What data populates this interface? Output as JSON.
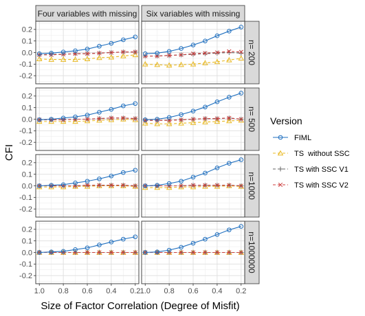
{
  "chart_data": {
    "type": "line",
    "facet_columns": [
      "Four variables with missing",
      "Six variables with missing"
    ],
    "facet_rows": [
      "n= 200",
      "n= 500",
      "n=1000",
      "n=1000000"
    ],
    "xlabel": "Size of Factor Correlation (Degree of Misfit)",
    "ylabel": "CFI",
    "x": [
      1.0,
      0.9,
      0.8,
      0.7,
      0.6,
      0.5,
      0.4,
      0.3,
      0.2
    ],
    "xlim": [
      1.03,
      0.17
    ],
    "x_reversed": true,
    "xticks": [
      "1.0",
      "0.8",
      "0.6",
      "0.4",
      "0.2"
    ],
    "ylim": [
      -0.27,
      0.27
    ],
    "yticks": [
      "0.2",
      "0.1",
      "0.0",
      "-0.1",
      "-0.2"
    ],
    "grid": true,
    "legend": {
      "title": "Version",
      "position": "right",
      "entries": [
        "FIML",
        "TS  without SSC",
        "TS with SSC V1",
        "TS with SSC V2"
      ]
    },
    "series_styles": {
      "FIML": {
        "color": "#1f6fbf",
        "marker": "circle",
        "dash": "solid"
      },
      "TS  without SSC": {
        "color": "#e8b820",
        "marker": "triangle",
        "dash": "dashed"
      },
      "TS with SSC V1": {
        "color": "#666666",
        "marker": "plus",
        "dash": "dashed"
      },
      "TS with SSC V2": {
        "color": "#cc3b3b",
        "marker": "cross",
        "dash": "dashed"
      }
    },
    "panels": [
      {
        "column": "Four variables with missing",
        "row": "n= 200",
        "series": [
          {
            "name": "FIML",
            "values": [
              -0.01,
              -0.005,
              0.005,
              0.015,
              0.03,
              0.055,
              0.08,
              0.11,
              0.135
            ]
          },
          {
            "name": "TS  without SSC",
            "values": [
              -0.055,
              -0.06,
              -0.06,
              -0.06,
              -0.055,
              -0.045,
              -0.04,
              -0.03,
              -0.02
            ]
          },
          {
            "name": "TS with SSC V1",
            "values": [
              -0.02,
              -0.015,
              -0.015,
              -0.01,
              -0.01,
              -0.005,
              0.0,
              0.005,
              0.005
            ]
          },
          {
            "name": "TS with SSC V2",
            "values": [
              -0.02,
              -0.02,
              -0.015,
              -0.01,
              -0.01,
              -0.005,
              0.0,
              0.005,
              0.005
            ]
          }
        ]
      },
      {
        "column": "Six variables with missing",
        "row": "n= 200",
        "series": [
          {
            "name": "FIML",
            "values": [
              -0.01,
              -0.005,
              0.01,
              0.035,
              0.065,
              0.1,
              0.145,
              0.185,
              0.22
            ]
          },
          {
            "name": "TS  without SSC",
            "values": [
              -0.1,
              -0.105,
              -0.11,
              -0.105,
              -0.1,
              -0.09,
              -0.08,
              -0.065,
              -0.05
            ]
          },
          {
            "name": "TS with SSC V1",
            "values": [
              -0.03,
              -0.03,
              -0.025,
              -0.02,
              -0.015,
              -0.01,
              -0.005,
              0.0,
              -0.005
            ]
          },
          {
            "name": "TS with SSC V2",
            "values": [
              -0.03,
              -0.03,
              -0.025,
              -0.02,
              -0.01,
              -0.005,
              0.0,
              0.01,
              0.005
            ]
          }
        ]
      },
      {
        "column": "Four variables with missing",
        "row": "n= 500",
        "series": [
          {
            "name": "FIML",
            "values": [
              -0.005,
              0.0,
              0.01,
              0.02,
              0.035,
              0.06,
              0.085,
              0.115,
              0.135
            ]
          },
          {
            "name": "TS  without SSC",
            "values": [
              -0.02,
              -0.02,
              -0.02,
              -0.02,
              -0.015,
              -0.01,
              -0.005,
              0.0,
              -0.005
            ]
          },
          {
            "name": "TS with SSC V1",
            "values": [
              -0.005,
              -0.005,
              -0.005,
              0.0,
              0.0,
              0.005,
              0.01,
              0.01,
              0.005
            ]
          },
          {
            "name": "TS with SSC V2",
            "values": [
              -0.005,
              -0.005,
              -0.005,
              0.0,
              0.0,
              0.005,
              0.01,
              0.01,
              0.005
            ]
          }
        ]
      },
      {
        "column": "Six variables with missing",
        "row": "n= 500",
        "series": [
          {
            "name": "FIML",
            "values": [
              -0.005,
              0.0,
              0.015,
              0.04,
              0.07,
              0.105,
              0.15,
              0.19,
              0.225
            ]
          },
          {
            "name": "TS  without SSC",
            "values": [
              -0.035,
              -0.04,
              -0.04,
              -0.035,
              -0.03,
              -0.025,
              -0.02,
              -0.015,
              -0.01
            ]
          },
          {
            "name": "TS with SSC V1",
            "values": [
              -0.01,
              -0.01,
              -0.01,
              -0.005,
              0.0,
              0.005,
              0.005,
              0.01,
              0.0
            ]
          },
          {
            "name": "TS with SSC V2",
            "values": [
              -0.01,
              -0.01,
              -0.01,
              -0.005,
              0.0,
              0.005,
              0.005,
              0.01,
              0.0
            ]
          }
        ]
      },
      {
        "column": "Four variables with missing",
        "row": "n=1000",
        "series": [
          {
            "name": "FIML",
            "values": [
              0.0,
              0.005,
              0.01,
              0.025,
              0.04,
              0.06,
              0.085,
              0.115,
              0.135
            ]
          },
          {
            "name": "TS  without SSC",
            "values": [
              -0.01,
              -0.01,
              -0.01,
              -0.005,
              -0.005,
              0.0,
              0.0,
              0.0,
              -0.005
            ]
          },
          {
            "name": "TS with SSC V1",
            "values": [
              0.0,
              0.0,
              0.0,
              0.0,
              0.005,
              0.005,
              0.005,
              0.005,
              0.0
            ]
          },
          {
            "name": "TS with SSC V2",
            "values": [
              0.0,
              0.0,
              0.0,
              0.0,
              0.005,
              0.005,
              0.005,
              0.005,
              0.0
            ]
          }
        ]
      },
      {
        "column": "Six variables with missing",
        "row": "n=1000",
        "series": [
          {
            "name": "FIML",
            "values": [
              0.0,
              0.005,
              0.02,
              0.04,
              0.075,
              0.11,
              0.155,
              0.195,
              0.225
            ]
          },
          {
            "name": "TS  without SSC",
            "values": [
              -0.015,
              -0.015,
              -0.015,
              -0.01,
              -0.01,
              -0.005,
              -0.005,
              0.0,
              -0.005
            ]
          },
          {
            "name": "TS with SSC V1",
            "values": [
              0.0,
              0.0,
              0.0,
              0.0,
              0.005,
              0.005,
              0.005,
              0.005,
              0.0
            ]
          },
          {
            "name": "TS with SSC V2",
            "values": [
              0.0,
              0.0,
              0.0,
              0.0,
              0.005,
              0.005,
              0.005,
              0.005,
              0.0
            ]
          }
        ]
      },
      {
        "column": "Four variables with missing",
        "row": "n=1000000",
        "series": [
          {
            "name": "FIML",
            "values": [
              0.0,
              0.005,
              0.01,
              0.025,
              0.04,
              0.065,
              0.09,
              0.115,
              0.135
            ]
          },
          {
            "name": "TS  without SSC",
            "values": [
              0.0,
              0.0,
              0.0,
              0.0,
              0.0,
              0.0,
              0.0,
              0.0,
              0.0
            ]
          },
          {
            "name": "TS with SSC V1",
            "values": [
              0.0,
              0.0,
              0.0,
              0.0,
              0.0,
              0.0,
              0.0,
              0.0,
              0.0
            ]
          },
          {
            "name": "TS with SSC V2",
            "values": [
              0.0,
              0.0,
              0.0,
              0.0,
              0.0,
              0.0,
              0.0,
              0.0,
              0.0
            ]
          }
        ]
      },
      {
        "column": "Six variables with missing",
        "row": "n=1000000",
        "series": [
          {
            "name": "FIML",
            "values": [
              0.0,
              0.005,
              0.02,
              0.045,
              0.08,
              0.115,
              0.155,
              0.195,
              0.225
            ]
          },
          {
            "name": "TS  without SSC",
            "values": [
              0.0,
              0.0,
              0.0,
              0.0,
              0.0,
              0.0,
              0.0,
              0.0,
              0.0
            ]
          },
          {
            "name": "TS with SSC V1",
            "values": [
              0.0,
              0.0,
              0.0,
              0.0,
              0.0,
              0.0,
              0.0,
              0.0,
              0.0
            ]
          },
          {
            "name": "TS with SSC V2",
            "values": [
              0.0,
              0.0,
              0.0,
              0.0,
              0.0,
              0.0,
              0.0,
              0.0,
              0.0
            ]
          }
        ]
      }
    ]
  }
}
